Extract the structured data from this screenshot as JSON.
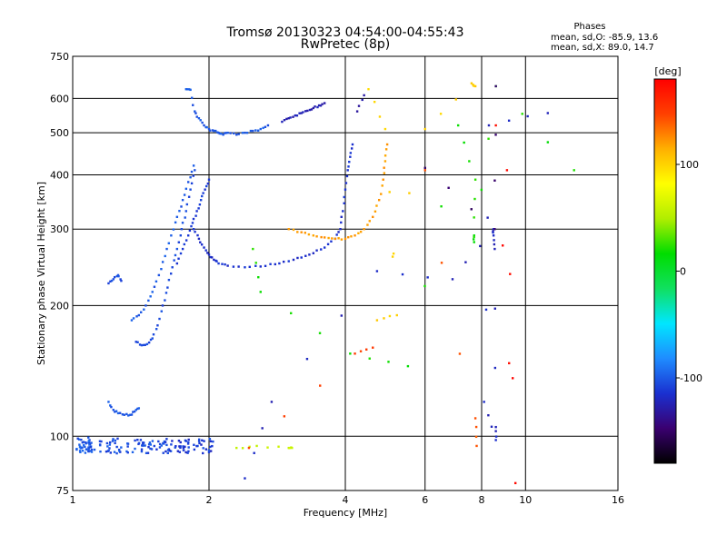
{
  "chart_data": {
    "type": "scatter",
    "title": "Tromsø 20130323 04:54:00-04:55:43",
    "subtitle": "RwPretec (8p)",
    "xlabel": "Frequency [MHz]",
    "ylabel": "Stationary phase Virtual Height [km]",
    "x_scale": "log",
    "y_scale": "log",
    "xlim": [
      1,
      16
    ],
    "ylim": [
      75,
      750
    ],
    "x_ticks": [
      1,
      2,
      4,
      6,
      8,
      10,
      16
    ],
    "y_ticks": [
      75,
      100,
      200,
      300,
      400,
      500,
      600,
      750
    ],
    "grid": true,
    "stats": {
      "header": "Phases",
      "o_line": "mean, sd,O: -85.9, 13.6",
      "x_line": "mean, sd,X: 89.0, 14.7"
    },
    "colorbar": {
      "label": "[deg]",
      "range": [
        -180,
        180
      ],
      "ticks": [
        100,
        0,
        -100
      ],
      "colors": [
        "#000000",
        "#3a0070",
        "#1a30d0",
        "#1f8cff",
        "#00e6ff",
        "#10e060",
        "#00dd00",
        "#b0ee00",
        "#ffff00",
        "#ffb000",
        "#ff4000",
        "#ff0000"
      ]
    },
    "traces": [
      {
        "phase": -100,
        "x0": 1.02,
        "x1": 1.1,
        "n": 40,
        "y": 95,
        "jitter": 0.045
      },
      {
        "phase": -105,
        "x0": 1.1,
        "x1": 1.6,
        "n": 70,
        "y": 95,
        "jitter": 0.04
      },
      {
        "phase": -110,
        "x0": 1.6,
        "x1": 2.05,
        "n": 55,
        "y": 95,
        "jitter": 0.04
      },
      {
        "phase": -100,
        "points": [
          [
            1.2,
            120
          ],
          [
            1.23,
            115
          ],
          [
            1.26,
            113
          ],
          [
            1.3,
            112
          ],
          [
            1.34,
            112
          ],
          [
            1.37,
            114
          ],
          [
            1.4,
            116
          ]
        ]
      },
      {
        "phase": -105,
        "points": [
          [
            1.2,
            225
          ],
          [
            1.23,
            230
          ],
          [
            1.26,
            235
          ],
          [
            1.28,
            228
          ]
        ]
      },
      {
        "phase": -105,
        "points": [
          [
            1.38,
            165
          ],
          [
            1.42,
            162
          ],
          [
            1.46,
            163
          ],
          [
            1.5,
            168
          ],
          [
            1.54,
            180
          ],
          [
            1.58,
            200
          ],
          [
            1.62,
            220
          ],
          [
            1.66,
            245
          ],
          [
            1.7,
            270
          ],
          [
            1.74,
            300
          ],
          [
            1.78,
            330
          ],
          [
            1.82,
            370
          ],
          [
            1.86,
            410
          ]
        ]
      },
      {
        "phase": -100,
        "points": [
          [
            1.35,
            185
          ],
          [
            1.4,
            190
          ],
          [
            1.45,
            200
          ],
          [
            1.5,
            215
          ],
          [
            1.55,
            235
          ],
          [
            1.6,
            260
          ],
          [
            1.65,
            290
          ],
          [
            1.7,
            320
          ],
          [
            1.75,
            350
          ],
          [
            1.8,
            385
          ],
          [
            1.85,
            420
          ]
        ]
      },
      {
        "phase": -110,
        "points": [
          [
            1.7,
            250
          ],
          [
            1.75,
            270
          ],
          [
            1.8,
            290
          ],
          [
            1.84,
            310
          ],
          [
            1.88,
            330
          ],
          [
            1.92,
            350
          ],
          [
            1.96,
            370
          ],
          [
            2.0,
            390
          ]
        ]
      },
      {
        "phase": -100,
        "points": [
          [
            1.78,
            630
          ],
          [
            1.82,
            628
          ],
          [
            1.86,
            560
          ],
          [
            1.9,
            540
          ],
          [
            1.95,
            520
          ],
          [
            2.0,
            510
          ],
          [
            2.05,
            505
          ],
          [
            2.1,
            500
          ],
          [
            2.15,
            495
          ],
          [
            2.2,
            500
          ],
          [
            2.3,
            495
          ],
          [
            2.4,
            500
          ],
          [
            2.5,
            505
          ],
          [
            2.6,
            510
          ],
          [
            2.7,
            520
          ]
        ]
      },
      {
        "phase": -115,
        "points": [
          [
            1.85,
            300
          ],
          [
            1.9,
            285
          ],
          [
            1.95,
            272
          ],
          [
            2.0,
            262
          ],
          [
            2.05,
            255
          ],
          [
            2.1,
            250
          ],
          [
            2.2,
            247
          ],
          [
            2.4,
            245
          ],
          [
            2.6,
            246
          ],
          [
            2.8,
            249
          ],
          [
            3.0,
            253
          ],
          [
            3.2,
            258
          ],
          [
            3.4,
            264
          ],
          [
            3.6,
            272
          ],
          [
            3.8,
            285
          ],
          [
            3.9,
            300
          ],
          [
            3.95,
            330
          ],
          [
            4.0,
            370
          ],
          [
            4.05,
            410
          ],
          [
            4.1,
            440
          ],
          [
            4.15,
            470
          ]
        ]
      },
      {
        "phase": -125,
        "points": [
          [
            2.9,
            530
          ],
          [
            3.0,
            540
          ],
          [
            3.1,
            548
          ],
          [
            3.2,
            555
          ],
          [
            3.3,
            562
          ],
          [
            3.4,
            570
          ],
          [
            3.5,
            578
          ],
          [
            3.6,
            585
          ]
        ]
      },
      {
        "phase": 120,
        "points": [
          [
            3.0,
            300
          ],
          [
            3.2,
            295
          ],
          [
            3.4,
            290
          ],
          [
            3.6,
            287
          ],
          [
            3.8,
            285
          ],
          [
            4.0,
            285
          ],
          [
            4.2,
            290
          ],
          [
            4.4,
            300
          ],
          [
            4.6,
            320
          ],
          [
            4.75,
            350
          ],
          [
            4.85,
            390
          ],
          [
            4.9,
            430
          ],
          [
            4.95,
            470
          ]
        ]
      },
      {
        "phase": -130,
        "points": [
          [
            4.25,
            560
          ],
          [
            4.4,
            610
          ]
        ]
      },
      {
        "phase": 60,
        "points": [
          [
            2.3,
            94
          ],
          [
            2.55,
            95
          ],
          [
            3.0,
            94
          ],
          [
            3.05,
            94
          ]
        ]
      },
      {
        "phase": 150,
        "points": [
          [
            2.45,
            94
          ],
          [
            4.2,
            155
          ],
          [
            4.6,
            160
          ]
        ]
      },
      {
        "phase": 100,
        "points": [
          [
            4.5,
            630
          ],
          [
            4.9,
            510
          ],
          [
            5.2,
            190
          ],
          [
            4.7,
            185
          ],
          [
            6.0,
            510
          ],
          [
            7.6,
            650
          ],
          [
            7.75,
            640
          ]
        ]
      },
      {
        "phase": -120,
        "points": [
          [
            2.4,
            80
          ],
          [
            2.75,
            120
          ],
          [
            4.7,
            240
          ],
          [
            6.9,
            230
          ],
          [
            8.5,
            300
          ],
          [
            8.5,
            290
          ],
          [
            8.55,
            270
          ],
          [
            8.6,
            105
          ],
          [
            8.6,
            98
          ],
          [
            8.1,
            120
          ],
          [
            8.3,
            520
          ],
          [
            11.2,
            555
          ]
        ]
      },
      {
        "phase": 20,
        "points": [
          [
            2.5,
            270
          ],
          [
            2.6,
            215
          ],
          [
            4.1,
            155
          ],
          [
            5.5,
            145
          ],
          [
            7.1,
            520
          ],
          [
            7.75,
            390
          ],
          [
            7.7,
            290
          ],
          [
            7.7,
            280
          ],
          [
            8.6,
            640
          ],
          [
            12.8,
            410
          ]
        ]
      },
      {
        "phase": 175,
        "points": [
          [
            8.6,
            520
          ],
          [
            9.5,
            78
          ],
          [
            9.1,
            410
          ]
        ]
      },
      {
        "phase": 140,
        "points": [
          [
            6.0,
            410
          ],
          [
            7.8,
            95
          ],
          [
            7.75,
            110
          ]
        ]
      },
      {
        "phase": -150,
        "points": [
          [
            6.0,
            415
          ],
          [
            8.55,
            300
          ],
          [
            8.6,
            640
          ]
        ]
      }
    ]
  }
}
